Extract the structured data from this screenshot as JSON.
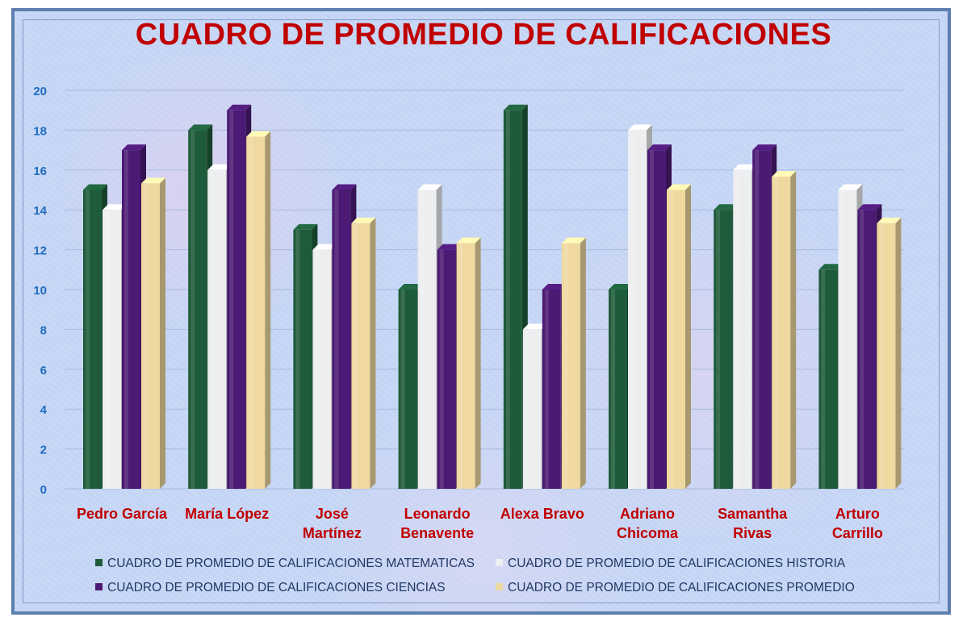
{
  "chart_data": {
    "type": "bar",
    "title": "CUADRO DE PROMEDIO DE CALIFICACIONES",
    "categories": [
      [
        "Pedro García"
      ],
      [
        "María López"
      ],
      [
        "José",
        "Martínez"
      ],
      [
        "Leonardo",
        "Benavente"
      ],
      [
        "Alexa Bravo"
      ],
      [
        "Adriano",
        "Chicoma"
      ],
      [
        "Samantha",
        "Rivas"
      ],
      [
        "Arturo",
        "Carrillo"
      ]
    ],
    "series": [
      {
        "name": "CUADRO DE PROMEDIO DE CALIFICACIONES MATEMATICAS",
        "color": "#1e5b3a",
        "values": [
          15,
          18,
          13,
          10,
          19,
          10,
          14,
          11
        ]
      },
      {
        "name": "CUADRO DE PROMEDIO DE CALIFICACIONES HISTORIA",
        "color": "#eceef0",
        "values": [
          14,
          16,
          12,
          15,
          8,
          18,
          16,
          15
        ]
      },
      {
        "name": "CUADRO DE PROMEDIO DE CALIFICACIONES CIENCIAS",
        "color": "#4b1a74",
        "values": [
          17,
          19,
          15,
          12,
          10,
          17,
          17,
          14
        ]
      },
      {
        "name": "CUADRO DE PROMEDIO DE CALIFICACIONES PROMEDIO",
        "color": "#efd9a0",
        "values": [
          15.33,
          17.67,
          13.33,
          12.33,
          12.33,
          15,
          15.67,
          13.33
        ]
      }
    ],
    "ylim": [
      0,
      20
    ],
    "yticks": [
      0,
      2,
      4,
      6,
      8,
      10,
      12,
      14,
      16,
      18,
      20
    ],
    "grid": true,
    "legend_position": "bottom",
    "xlabel": "",
    "ylabel": ""
  }
}
